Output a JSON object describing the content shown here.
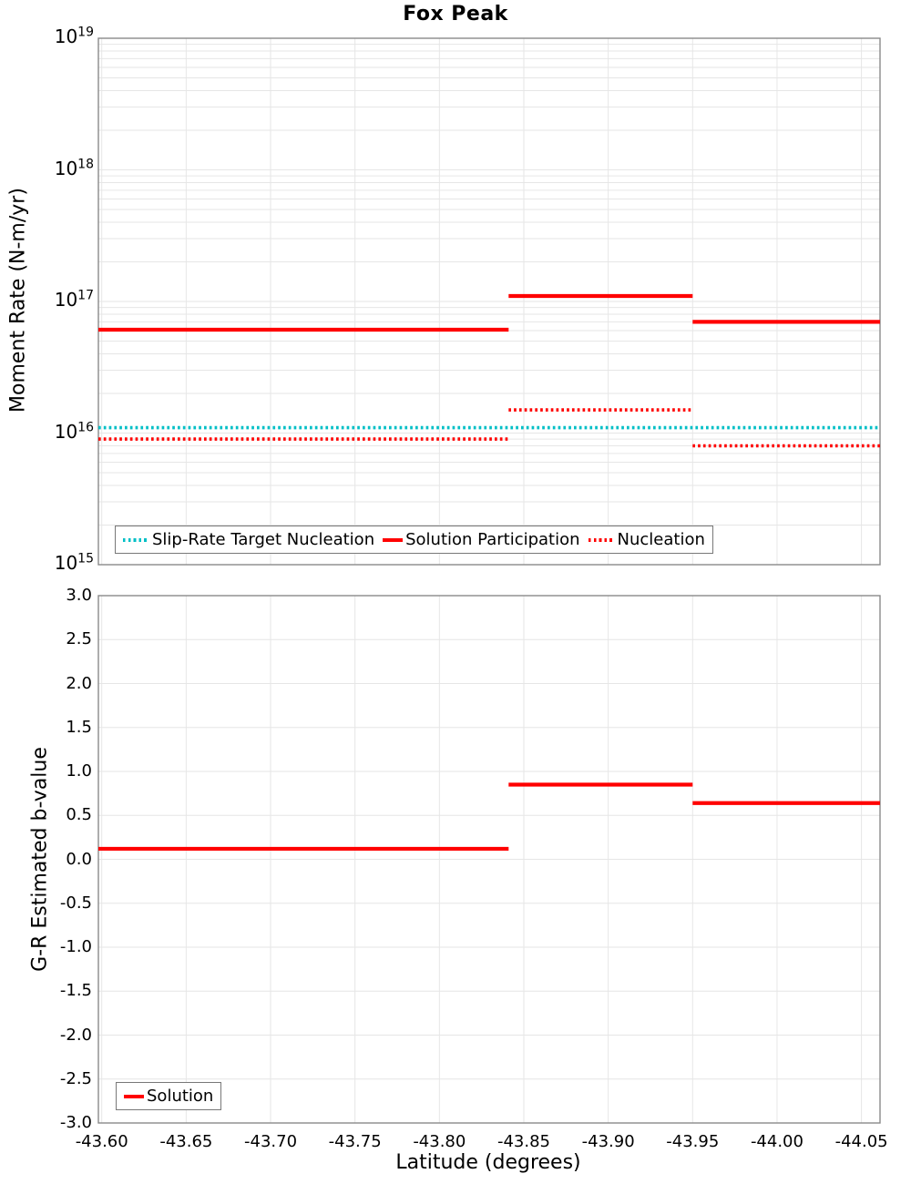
{
  "figure_title": "Fox Peak",
  "colors": {
    "solution_red": "#ff0000",
    "target_teal": "#00bfc6",
    "gridline": "#e6e6e6",
    "spine": "#8a8a8a",
    "legend_border": "#787878",
    "text": "#000000"
  },
  "chart_data": [
    {
      "type": "line",
      "title": "Fox Peak",
      "ylabel": "Moment Rate (N-m/yr)",
      "yscale": "log",
      "ylim": [
        1000000000000000.0,
        1e+19
      ],
      "y_ticks": [
        1e+19,
        1e+18,
        1e+17,
        1e+16,
        1000000000000000.0
      ],
      "xlim": [
        -43.598,
        -44.061
      ],
      "x_ticks": [
        -43.6,
        -43.65,
        -43.7,
        -43.75,
        -43.8,
        -43.85,
        -43.9,
        -43.95,
        -44.0,
        -44.05
      ],
      "x_tick_labels_visible": false,
      "grid": true,
      "legend_position": "lower left",
      "series": [
        {
          "name": "Slip-Rate Target Nucleation",
          "color": "#00bfc6",
          "line_style": "dotted",
          "steps": [
            {
              "x_start": -43.598,
              "x_end": -44.061,
              "value": 1.1e+16
            }
          ]
        },
        {
          "name": "Solution Participation",
          "color": "#ff0000",
          "line_style": "solid",
          "steps": [
            {
              "x_start": -43.598,
              "x_end": -43.841,
              "value": 6.1e+16
            },
            {
              "x_start": -43.841,
              "x_end": -43.95,
              "value": 1.1e+17
            },
            {
              "x_start": -43.95,
              "x_end": -44.061,
              "value": 7e+16
            }
          ]
        },
        {
          "name": "Nucleation",
          "color": "#ff0000",
          "line_style": "dotted",
          "steps": [
            {
              "x_start": -43.598,
              "x_end": -43.841,
              "value": 9000000000000000.0
            },
            {
              "x_start": -43.841,
              "x_end": -43.95,
              "value": 1.5e+16
            },
            {
              "x_start": -43.95,
              "x_end": -44.061,
              "value": 8000000000000000.0
            }
          ]
        }
      ]
    },
    {
      "type": "line",
      "title": "",
      "ylabel": "G-R Estimated b-value",
      "xlabel": "Latitude (degrees)",
      "yscale": "linear",
      "ylim": [
        -3.0,
        3.0
      ],
      "y_ticks": [
        3.0,
        2.5,
        2.0,
        1.5,
        1.0,
        0.5,
        0.0,
        -0.5,
        -1.0,
        -1.5,
        -2.0,
        -2.5,
        -3.0
      ],
      "xlim": [
        -43.598,
        -44.061
      ],
      "x_ticks": [
        -43.6,
        -43.65,
        -43.7,
        -43.75,
        -43.8,
        -43.85,
        -43.9,
        -43.95,
        -44.0,
        -44.05
      ],
      "x_tick_labels_visible": true,
      "grid": true,
      "legend_position": "lower left",
      "series": [
        {
          "name": "Solution",
          "color": "#ff0000",
          "line_style": "solid",
          "steps": [
            {
              "x_start": -43.598,
              "x_end": -43.841,
              "value": 0.12
            },
            {
              "x_start": -43.841,
              "x_end": -43.95,
              "value": 0.85
            },
            {
              "x_start": -43.95,
              "x_end": -44.061,
              "value": 0.64
            }
          ]
        }
      ]
    }
  ]
}
